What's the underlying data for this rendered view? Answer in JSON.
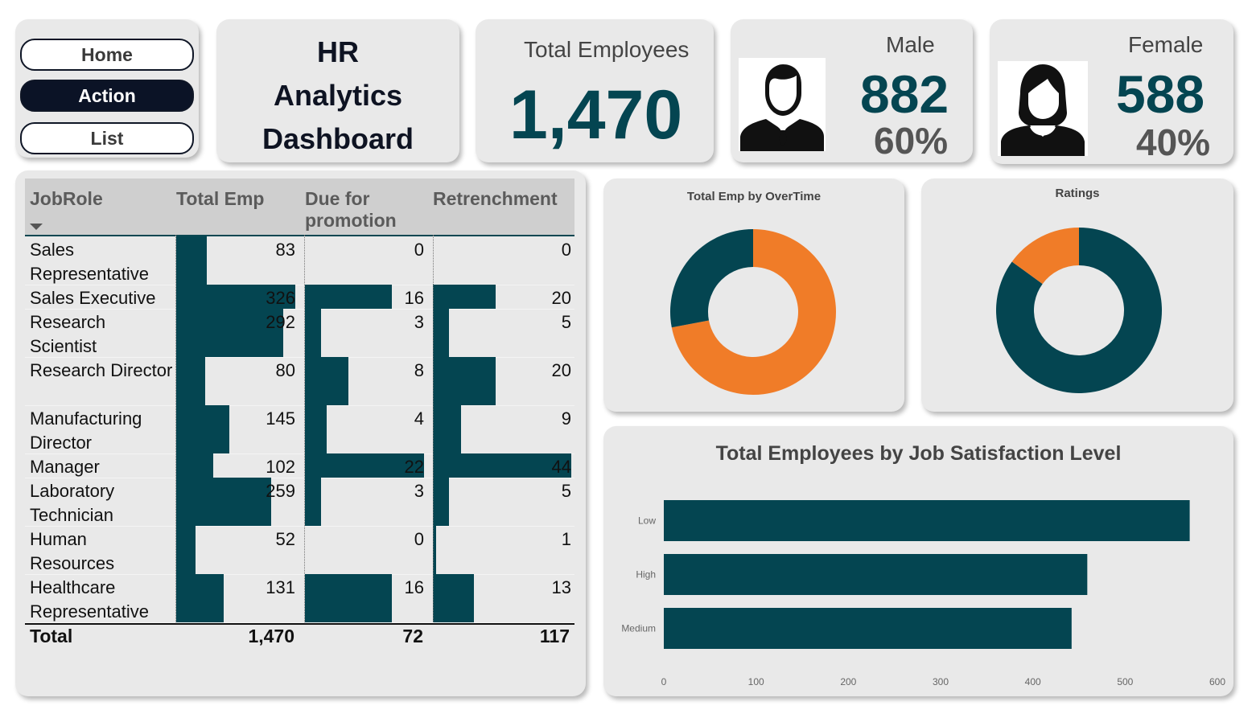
{
  "nav": {
    "home": "Home",
    "action": "Action",
    "list": "List"
  },
  "title": {
    "line1": "HR",
    "line2": "Analytics",
    "line3": "Dashboard"
  },
  "kpi_total": {
    "label": "Total Employees",
    "value": "1,470"
  },
  "kpi_male": {
    "label": "Male",
    "value": "882",
    "pct": "60%",
    "icon": "male-user-icon"
  },
  "kpi_female": {
    "label": "Female",
    "value": "588",
    "pct": "40%",
    "icon": "female-user-icon"
  },
  "table": {
    "headers": {
      "role": "JobRole",
      "total": "Total Emp",
      "promo": "Due for promotion",
      "retr": "Retrenchment"
    },
    "rows": [
      {
        "role": "Sales Representative",
        "total": 83,
        "promo": 0,
        "retr": 0
      },
      {
        "role": "Sales Executive",
        "total": 326,
        "promo": 16,
        "retr": 20
      },
      {
        "role": "Research Scientist",
        "total": 292,
        "promo": 3,
        "retr": 5
      },
      {
        "role": "Research Director",
        "total": 80,
        "promo": 8,
        "retr": 20
      },
      {
        "role": "Manufacturing Director",
        "total": 145,
        "promo": 4,
        "retr": 9
      },
      {
        "role": "Manager",
        "total": 102,
        "promo": 22,
        "retr": 44
      },
      {
        "role": "Laboratory Technician",
        "total": 259,
        "promo": 3,
        "retr": 5
      },
      {
        "role": "Human Resources",
        "total": 52,
        "promo": 0,
        "retr": 1
      },
      {
        "role": "Healthcare Representative",
        "total": 131,
        "promo": 16,
        "retr": 13
      }
    ],
    "totals": {
      "label": "Total",
      "total": "1,470",
      "promo": "72",
      "retr": "117"
    }
  },
  "colors": {
    "teal": "#044551",
    "orange": "#f07c28",
    "card": "#e9e9e9"
  },
  "chart_data": [
    {
      "type": "pie",
      "title": "Total Emp by OverTime",
      "slices": [
        {
          "value": 72,
          "color": "#f07c28"
        },
        {
          "value": 28,
          "color": "#044551"
        }
      ]
    },
    {
      "type": "pie",
      "title": "Ratings",
      "slices": [
        {
          "value": 85,
          "color": "#044551"
        },
        {
          "value": 15,
          "color": "#f07c28"
        }
      ]
    },
    {
      "type": "bar",
      "orientation": "horizontal",
      "title": "Total Employees by Job Satisfaction Level",
      "categories": [
        "Low",
        "High",
        "Medium"
      ],
      "values": [
        570,
        459,
        442
      ],
      "xlim": [
        0,
        600
      ],
      "xticks": [
        "0",
        "100",
        "200",
        "300",
        "400",
        "500",
        "600"
      ]
    }
  ]
}
